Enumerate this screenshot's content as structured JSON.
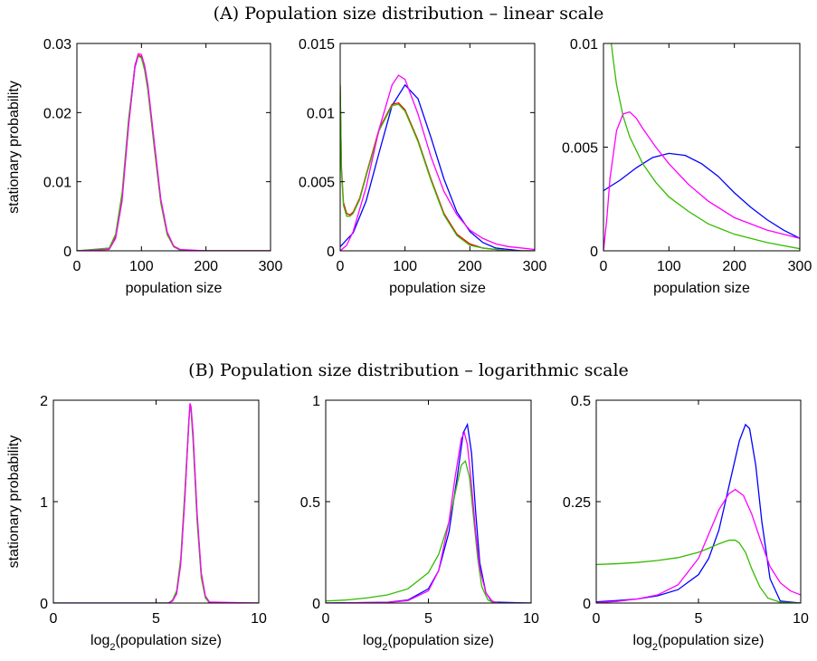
{
  "titles": {
    "a": "(A) Population size distribution – linear scale",
    "b": "(B) Population size distribution – logarithmic scale"
  },
  "colors": {
    "blue": "#0000ff",
    "red": "#ff0000",
    "green": "#33bb00",
    "magenta": "#ff00ff"
  },
  "chart_data": [
    {
      "type": "line",
      "row": "A",
      "col": 1,
      "xlabel": "population size",
      "ylabel": "stationary probability",
      "xlim": [
        0,
        300
      ],
      "ylim": [
        0,
        0.03
      ],
      "xticks": [
        0,
        100,
        200,
        300
      ],
      "yticks": [
        0,
        0.01,
        0.02,
        0.03
      ],
      "xtick_labels": [
        "0",
        "100",
        "200",
        "300"
      ],
      "ytick_labels": [
        "0",
        "0.01",
        "0.02",
        "0.03"
      ],
      "series": [
        {
          "color": "#0000ff",
          "x": [
            0,
            50,
            60,
            70,
            80,
            90,
            95,
            100,
            105,
            110,
            120,
            130,
            140,
            150,
            160,
            200,
            300
          ],
          "y": [
            0,
            0.0003,
            0.0021,
            0.0078,
            0.0183,
            0.0266,
            0.0282,
            0.028,
            0.0264,
            0.0236,
            0.0153,
            0.0072,
            0.0025,
            0.0006,
            0.0001,
            0,
            0
          ]
        },
        {
          "color": "#ff0000",
          "x": [
            0,
            50,
            60,
            70,
            80,
            90,
            95,
            100,
            105,
            110,
            120,
            130,
            140,
            150,
            160,
            200,
            300
          ],
          "y": [
            0,
            0.0003,
            0.0022,
            0.008,
            0.0186,
            0.0268,
            0.0283,
            0.0281,
            0.0263,
            0.0234,
            0.015,
            0.007,
            0.0024,
            0.0006,
            0.0001,
            0,
            0
          ]
        },
        {
          "color": "#33bb00",
          "x": [
            0,
            50,
            60,
            70,
            80,
            90,
            95,
            100,
            105,
            110,
            120,
            130,
            140,
            150,
            160,
            200,
            300
          ],
          "y": [
            0,
            0.0004,
            0.0024,
            0.0084,
            0.019,
            0.0269,
            0.0282,
            0.0279,
            0.0261,
            0.0232,
            0.0148,
            0.0069,
            0.0023,
            0.0006,
            0.0001,
            0,
            0
          ]
        },
        {
          "color": "#ff00ff",
          "x": [
            0,
            50,
            60,
            70,
            80,
            90,
            95,
            100,
            105,
            110,
            120,
            130,
            140,
            150,
            160,
            200,
            300
          ],
          "y": [
            0,
            0.0002,
            0.0018,
            0.0072,
            0.018,
            0.0268,
            0.0285,
            0.0284,
            0.0268,
            0.024,
            0.0157,
            0.0075,
            0.0027,
            0.0007,
            0.0002,
            0,
            0
          ]
        }
      ]
    },
    {
      "type": "line",
      "row": "A",
      "col": 2,
      "xlabel": "population size",
      "ylabel": "",
      "xlim": [
        0,
        300
      ],
      "ylim": [
        0,
        0.015
      ],
      "xticks": [
        0,
        100,
        200,
        300
      ],
      "yticks": [
        0,
        0.005,
        0.01,
        0.015
      ],
      "xtick_labels": [
        "0",
        "100",
        "200",
        "300"
      ],
      "ytick_labels": [
        "0",
        "0.005",
        "0.01",
        "0.015"
      ],
      "series": [
        {
          "color": "#0000ff",
          "x": [
            0,
            20,
            40,
            60,
            80,
            100,
            120,
            140,
            160,
            180,
            200,
            220,
            240,
            260,
            280,
            300
          ],
          "y": [
            0.0003,
            0.0013,
            0.0036,
            0.0071,
            0.0105,
            0.012,
            0.011,
            0.0082,
            0.0052,
            0.0028,
            0.0014,
            0.0006,
            0.0002,
            0.0001,
            0,
            0
          ]
        },
        {
          "color": "#ff0000",
          "x": [
            0,
            2,
            5,
            10,
            15,
            20,
            30,
            40,
            60,
            80,
            90,
            100,
            120,
            140,
            160,
            180,
            200,
            220,
            240,
            260,
            300
          ],
          "y": [
            0.012,
            0.006,
            0.0035,
            0.0027,
            0.0026,
            0.0028,
            0.0038,
            0.0055,
            0.0088,
            0.0106,
            0.0107,
            0.0102,
            0.008,
            0.0052,
            0.0027,
            0.0012,
            0.0005,
            0.0002,
            0.0001,
            0,
            0
          ]
        },
        {
          "color": "#33bb00",
          "x": [
            0,
            2,
            5,
            10,
            15,
            20,
            30,
            40,
            60,
            80,
            90,
            100,
            120,
            140,
            160,
            180,
            200,
            220,
            240,
            260,
            300
          ],
          "y": [
            0.012,
            0.0058,
            0.0033,
            0.0025,
            0.0025,
            0.0027,
            0.0037,
            0.0054,
            0.0087,
            0.0105,
            0.0106,
            0.0101,
            0.0079,
            0.0051,
            0.0026,
            0.0011,
            0.0004,
            0.0002,
            0.0001,
            0,
            0
          ]
        },
        {
          "color": "#ff00ff",
          "x": [
            0,
            10,
            20,
            40,
            60,
            80,
            90,
            100,
            120,
            140,
            160,
            180,
            200,
            220,
            240,
            260,
            280,
            300
          ],
          "y": [
            0,
            0.0004,
            0.0014,
            0.0046,
            0.0088,
            0.012,
            0.0127,
            0.0124,
            0.0099,
            0.0068,
            0.0043,
            0.0026,
            0.0015,
            0.0009,
            0.0005,
            0.0003,
            0.0002,
            0.0001
          ]
        }
      ]
    },
    {
      "type": "line",
      "row": "A",
      "col": 3,
      "xlabel": "population size",
      "ylabel": "",
      "xlim": [
        0,
        300
      ],
      "ylim": [
        0,
        0.01
      ],
      "xticks": [
        0,
        100,
        200,
        300
      ],
      "yticks": [
        0,
        0.005,
        0.01
      ],
      "xtick_labels": [
        "0",
        "100",
        "200",
        "300"
      ],
      "ytick_labels": [
        "0",
        "0.005",
        "0.01"
      ],
      "series": [
        {
          "color": "#0000ff",
          "x": [
            0,
            25,
            50,
            75,
            100,
            125,
            150,
            175,
            200,
            225,
            250,
            275,
            300
          ],
          "y": [
            0.0029,
            0.0034,
            0.004,
            0.0045,
            0.0047,
            0.0046,
            0.0042,
            0.0036,
            0.0028,
            0.0021,
            0.0015,
            0.001,
            0.0006
          ]
        },
        {
          "color": "#33bb00",
          "x": [
            10,
            15,
            20,
            30,
            40,
            60,
            80,
            100,
            130,
            160,
            200,
            250,
            300
          ],
          "y": [
            0.0105,
            0.0092,
            0.008,
            0.0065,
            0.0055,
            0.0042,
            0.0033,
            0.0026,
            0.0019,
            0.0013,
            0.0008,
            0.0004,
            0.0001
          ]
        },
        {
          "color": "#ff00ff",
          "x": [
            0,
            5,
            10,
            20,
            30,
            40,
            50,
            60,
            80,
            100,
            130,
            160,
            200,
            250,
            300
          ],
          "y": [
            0,
            0.0015,
            0.0035,
            0.0058,
            0.0066,
            0.0067,
            0.0064,
            0.0059,
            0.005,
            0.0042,
            0.0032,
            0.0024,
            0.0016,
            0.001,
            0.0006
          ]
        }
      ]
    },
    {
      "type": "line",
      "row": "B",
      "col": 1,
      "xlabel": "log2(population size)",
      "ylabel": "stationary probability",
      "xlim": [
        0,
        10
      ],
      "ylim": [
        0,
        2
      ],
      "xticks": [
        0,
        5,
        10
      ],
      "yticks": [
        0,
        1,
        2
      ],
      "xtick_labels": [
        "0",
        "5",
        "10"
      ],
      "ytick_labels": [
        "0",
        "1",
        "2"
      ],
      "series": [
        {
          "color": "#0000ff",
          "x": [
            0,
            5.6,
            5.8,
            6.0,
            6.2,
            6.4,
            6.6,
            6.65,
            6.7,
            6.8,
            7.0,
            7.2,
            7.4,
            7.6,
            10
          ],
          "y": [
            0,
            0,
            0.02,
            0.1,
            0.4,
            1.05,
            1.8,
            1.95,
            1.92,
            1.65,
            0.85,
            0.28,
            0.06,
            0,
            0
          ]
        },
        {
          "color": "#33bb00",
          "x": [
            0,
            5.6,
            5.8,
            6.0,
            6.2,
            6.4,
            6.6,
            6.65,
            6.7,
            6.8,
            7.0,
            7.2,
            7.4,
            7.6,
            10
          ],
          "y": [
            0,
            0,
            0.03,
            0.12,
            0.44,
            1.1,
            1.82,
            1.94,
            1.9,
            1.6,
            0.8,
            0.25,
            0.05,
            0,
            0
          ]
        },
        {
          "color": "#ff00ff",
          "x": [
            0,
            5.6,
            5.8,
            6.0,
            6.2,
            6.4,
            6.6,
            6.65,
            6.7,
            6.8,
            7.0,
            7.2,
            7.4,
            7.6,
            10
          ],
          "y": [
            0,
            0,
            0.02,
            0.09,
            0.38,
            1.02,
            1.8,
            1.97,
            1.94,
            1.68,
            0.88,
            0.3,
            0.07,
            0.01,
            0
          ]
        }
      ]
    },
    {
      "type": "line",
      "row": "B",
      "col": 2,
      "xlabel": "log2(population size)",
      "ylabel": "",
      "xlim": [
        0,
        10
      ],
      "ylim": [
        0,
        1
      ],
      "xticks": [
        0,
        5,
        10
      ],
      "yticks": [
        0,
        0.5,
        1
      ],
      "xtick_labels": [
        "0",
        "5",
        "10"
      ],
      "ytick_labels": [
        "0",
        "0.5",
        "1"
      ],
      "series": [
        {
          "color": "#0000ff",
          "x": [
            0,
            3,
            4,
            5,
            5.5,
            6,
            6.4,
            6.7,
            6.9,
            7.1,
            7.3,
            7.5,
            7.8,
            8.1,
            10
          ],
          "y": [
            0,
            0.004,
            0.015,
            0.07,
            0.16,
            0.35,
            0.62,
            0.84,
            0.88,
            0.74,
            0.45,
            0.2,
            0.05,
            0.005,
            0
          ]
        },
        {
          "color": "#33bb00",
          "x": [
            0,
            1,
            2,
            3,
            4,
            5,
            5.5,
            6,
            6.3,
            6.6,
            6.8,
            7.0,
            7.2,
            7.4,
            7.6,
            7.9,
            8.2,
            10
          ],
          "y": [
            0.01,
            0.015,
            0.025,
            0.04,
            0.07,
            0.15,
            0.24,
            0.4,
            0.54,
            0.68,
            0.7,
            0.62,
            0.42,
            0.22,
            0.08,
            0.015,
            0,
            0
          ]
        },
        {
          "color": "#ff00ff",
          "x": [
            0,
            3,
            4,
            5,
            5.5,
            6,
            6.3,
            6.6,
            6.75,
            6.9,
            7.1,
            7.3,
            7.5,
            7.8,
            8.1,
            8.4,
            10
          ],
          "y": [
            0,
            0.003,
            0.012,
            0.06,
            0.16,
            0.4,
            0.62,
            0.81,
            0.84,
            0.78,
            0.58,
            0.35,
            0.17,
            0.05,
            0.01,
            0,
            0
          ]
        }
      ]
    },
    {
      "type": "line",
      "row": "B",
      "col": 3,
      "xlabel": "log2(population size)",
      "ylabel": "",
      "xlim": [
        0,
        10
      ],
      "ylim": [
        0,
        0.5
      ],
      "xticks": [
        0,
        5,
        10
      ],
      "yticks": [
        0,
        0.25,
        0.5
      ],
      "xtick_labels": [
        "0",
        "5",
        "10"
      ],
      "ytick_labels": [
        "0",
        "0.25",
        "0.5"
      ],
      "series": [
        {
          "color": "#0000ff",
          "x": [
            0,
            1,
            2,
            3,
            4,
            5,
            5.5,
            6,
            6.5,
            7,
            7.3,
            7.5,
            7.8,
            8.1,
            8.5,
            9,
            10
          ],
          "y": [
            0.003,
            0.006,
            0.01,
            0.018,
            0.033,
            0.07,
            0.11,
            0.18,
            0.29,
            0.4,
            0.44,
            0.43,
            0.34,
            0.2,
            0.06,
            0.005,
            0
          ]
        },
        {
          "color": "#33bb00",
          "x": [
            0,
            1,
            2,
            3,
            4,
            5,
            5.5,
            6,
            6.5,
            6.8,
            7.0,
            7.3,
            7.6,
            8,
            8.4,
            9,
            10
          ],
          "y": [
            0.095,
            0.097,
            0.1,
            0.105,
            0.112,
            0.125,
            0.135,
            0.146,
            0.155,
            0.155,
            0.148,
            0.125,
            0.085,
            0.04,
            0.012,
            0.002,
            0
          ]
        },
        {
          "color": "#ff00ff",
          "x": [
            0,
            1,
            2,
            3,
            4,
            5,
            5.5,
            6,
            6.5,
            6.8,
            7.2,
            7.6,
            8,
            8.5,
            9,
            9.5,
            10
          ],
          "y": [
            0.001,
            0.004,
            0.01,
            0.02,
            0.045,
            0.11,
            0.17,
            0.23,
            0.27,
            0.28,
            0.265,
            0.22,
            0.16,
            0.09,
            0.05,
            0.03,
            0.02
          ]
        }
      ]
    }
  ]
}
